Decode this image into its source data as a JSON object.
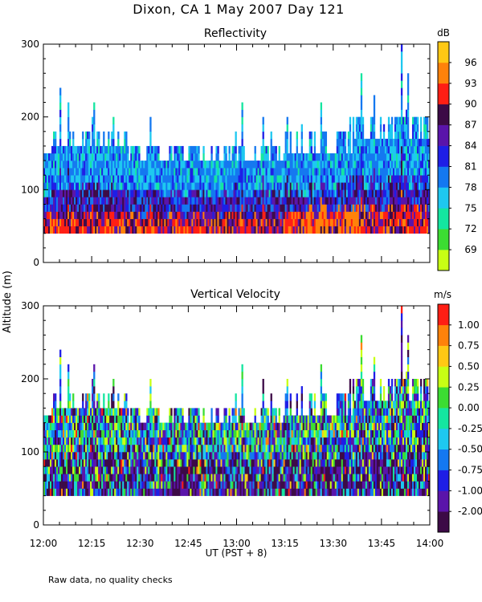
{
  "figure": {
    "title": "Dixon, CA   1 May 2007   Day 121",
    "ylabel": "Altitude  (m)",
    "xlabel": "UT  (PST + 8)",
    "footnote": "Raw data, no quality checks",
    "x_ticks": [
      "12:00",
      "12:15",
      "12:30",
      "12:45",
      "13:00",
      "13:15",
      "13:30",
      "13:45",
      "14:00"
    ]
  },
  "chart_data": [
    {
      "type": "heatmap",
      "title": "Reflectivity",
      "xlabel": "UT  (PST + 8)",
      "ylabel": "Altitude  (m)",
      "xlim": [
        "12:00",
        "14:00"
      ],
      "ylim": [
        0,
        300
      ],
      "y_ticks": [
        0,
        100,
        200,
        300
      ],
      "colorbar": {
        "label": "dB",
        "tick_labels": [
          "96",
          "93",
          "90",
          "87",
          "84",
          "81",
          "78",
          "75",
          "72",
          "69"
        ],
        "colors": [
          "#c8ff14",
          "#3cdc32",
          "#14e6a0",
          "#1ec8f0",
          "#1478f0",
          "#1e1ee6",
          "#5a14aa",
          "#3c0a46",
          "#ff1e14",
          "#ff820a",
          "#ffc814"
        ]
      },
      "description_values": {
        "data_bottom_altitude_m": 40,
        "typical_top_altitude_m": 160,
        "max_top_altitude_m": 300
      }
    },
    {
      "type": "heatmap",
      "title": "Vertical Velocity",
      "xlabel": "UT  (PST + 8)",
      "ylabel": "Altitude  (m)",
      "xlim": [
        "12:00",
        "14:00"
      ],
      "ylim": [
        0,
        300
      ],
      "y_ticks": [
        0,
        100,
        200,
        300
      ],
      "colorbar": {
        "label": "m/s",
        "tick_labels": [
          "1.00",
          "0.75",
          "0.50",
          "0.25",
          "0.00",
          "-0.25",
          "-0.50",
          "-0.75",
          "-1.00",
          "-2.00"
        ],
        "colors": [
          "#3c0a46",
          "#5a14aa",
          "#1e1ee6",
          "#1478f0",
          "#1ec8f0",
          "#14e6a0",
          "#3cdc32",
          "#c8ff14",
          "#ffc814",
          "#ff820a",
          "#ff1e14"
        ]
      },
      "description_values": {
        "data_bottom_altitude_m": 40,
        "typical_top_altitude_m": 160,
        "max_top_altitude_m": 300
      }
    }
  ]
}
